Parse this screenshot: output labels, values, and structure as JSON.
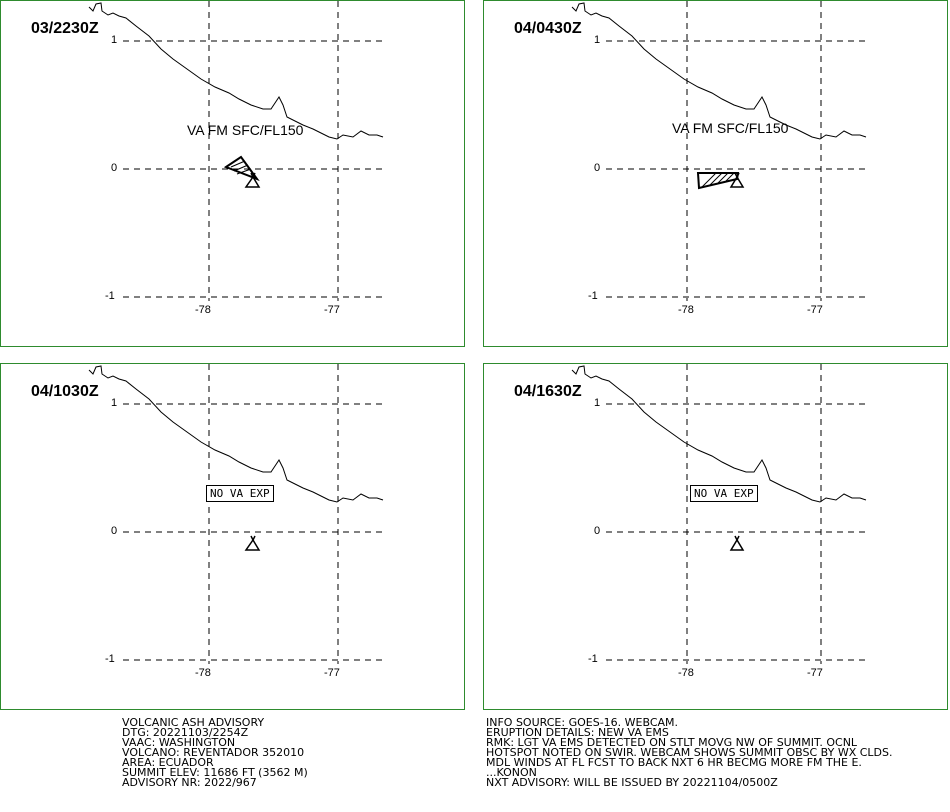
{
  "panels": [
    {
      "time": "03/2230Z",
      "label": "VA FM SFC/FL150"
    },
    {
      "time": "04/0430Z",
      "label": "VA FM SFC/FL150"
    },
    {
      "time": "04/1030Z",
      "label": "NO VA EXP"
    },
    {
      "time": "04/1630Z",
      "label": "NO VA EXP"
    }
  ],
  "axes": {
    "lat_labels": [
      "1",
      "0",
      "-1"
    ],
    "lon_labels": [
      "-78",
      "-77"
    ]
  },
  "advisory_left": [
    "VOLCANIC ASH ADVISORY",
    "DTG: 20221103/2254Z",
    "VAAC: WASHINGTON",
    "VOLCANO: REVENTADOR 352010",
    "AREA: ECUADOR",
    "SUMMIT ELEV: 11686 FT (3562 M)",
    "ADVISORY NR: 2022/967"
  ],
  "advisory_right": [
    "INFO SOURCE: GOES-16. WEBCAM.",
    "ERUPTION DETAILS: NEW VA EMS",
    "RMK: LGT VA EMS DETECTED ON STLT MOVG NW OF SUMMIT. OCNL",
    "HOTSPOT NOTED ON SWIR. WEBCAM SHOWS SUMMIT OBSC BY WX CLDS.",
    "MDL WINDS AT FL FCST TO BACK NXT 6 HR BECMG MORE FM THE E.",
    "...KONON",
    "NXT ADVISORY: WILL BE ISSUED BY 20221104/0500Z"
  ],
  "colors": {
    "panel_border": "#2e8b2e",
    "lines": "#000000"
  }
}
